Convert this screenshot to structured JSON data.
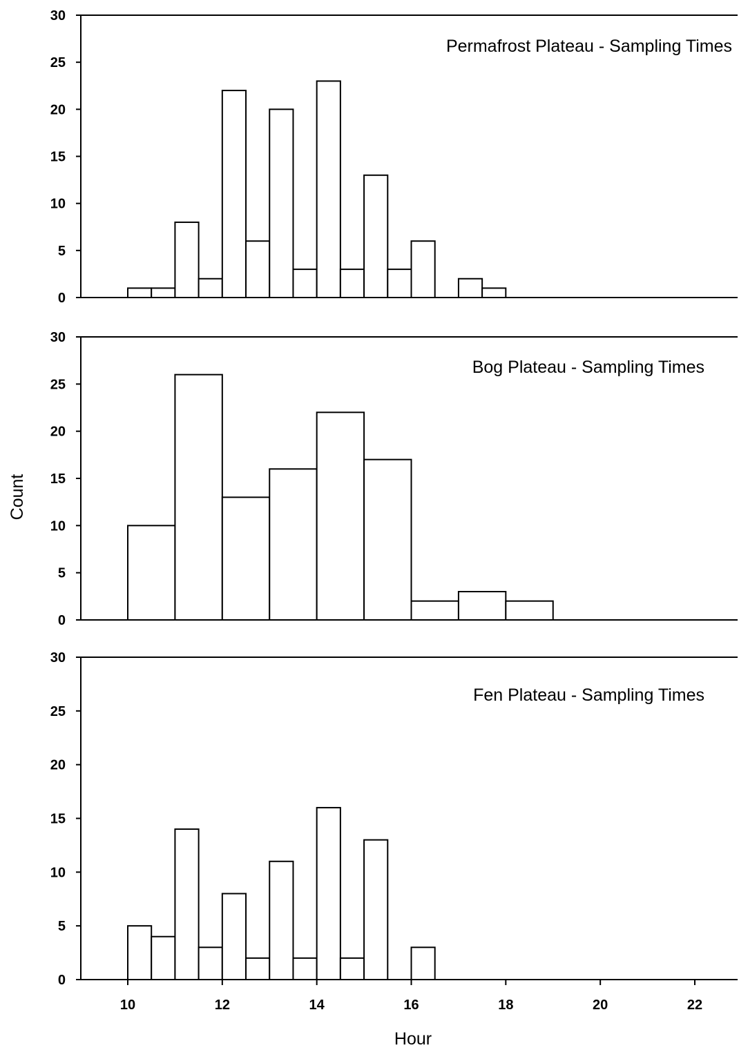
{
  "chart_data": [
    {
      "type": "bar",
      "title": "Permafrost Plateau - Sampling Times",
      "ylim": [
        0,
        30
      ],
      "yticks": [
        0,
        5,
        10,
        15,
        20,
        25,
        30
      ],
      "xlim": [
        9,
        23
      ],
      "bin_width": 0.5,
      "bins": [
        {
          "x": 10.0,
          "count": 1
        },
        {
          "x": 10.5,
          "count": 1
        },
        {
          "x": 11.0,
          "count": 8
        },
        {
          "x": 11.5,
          "count": 2
        },
        {
          "x": 12.0,
          "count": 22
        },
        {
          "x": 12.5,
          "count": 6
        },
        {
          "x": 13.0,
          "count": 20
        },
        {
          "x": 13.5,
          "count": 3
        },
        {
          "x": 14.0,
          "count": 23
        },
        {
          "x": 14.5,
          "count": 3
        },
        {
          "x": 15.0,
          "count": 13
        },
        {
          "x": 15.5,
          "count": 3
        },
        {
          "x": 16.0,
          "count": 6
        },
        {
          "x": 17.0,
          "count": 2
        },
        {
          "x": 17.5,
          "count": 1
        }
      ]
    },
    {
      "type": "bar",
      "title": "Bog Plateau - Sampling Times",
      "ylim": [
        0,
        30
      ],
      "yticks": [
        0,
        5,
        10,
        15,
        20,
        25,
        30
      ],
      "xlim": [
        9,
        23
      ],
      "bin_width": 1,
      "bins": [
        {
          "x": 10,
          "count": 10
        },
        {
          "x": 11,
          "count": 26
        },
        {
          "x": 12,
          "count": 13
        },
        {
          "x": 13,
          "count": 16
        },
        {
          "x": 14,
          "count": 22
        },
        {
          "x": 15,
          "count": 17
        },
        {
          "x": 16,
          "count": 2
        },
        {
          "x": 17,
          "count": 3
        },
        {
          "x": 18,
          "count": 2
        }
      ]
    },
    {
      "type": "bar",
      "title": "Fen Plateau - Sampling Times",
      "ylim": [
        0,
        30
      ],
      "yticks": [
        0,
        5,
        10,
        15,
        20,
        25,
        30
      ],
      "xlim": [
        9,
        23
      ],
      "xticks": [
        10,
        12,
        14,
        16,
        18,
        20,
        22
      ],
      "bin_width": 0.5,
      "bins": [
        {
          "x": 10.0,
          "count": 5
        },
        {
          "x": 10.5,
          "count": 4
        },
        {
          "x": 11.0,
          "count": 14
        },
        {
          "x": 11.5,
          "count": 3
        },
        {
          "x": 12.0,
          "count": 8
        },
        {
          "x": 12.5,
          "count": 2
        },
        {
          "x": 13.0,
          "count": 11
        },
        {
          "x": 13.5,
          "count": 2
        },
        {
          "x": 14.0,
          "count": 16
        },
        {
          "x": 14.5,
          "count": 2
        },
        {
          "x": 15.0,
          "count": 13
        },
        {
          "x": 16.0,
          "count": 3
        }
      ]
    }
  ],
  "xlabel": "Hour",
  "ylabel": "Count"
}
